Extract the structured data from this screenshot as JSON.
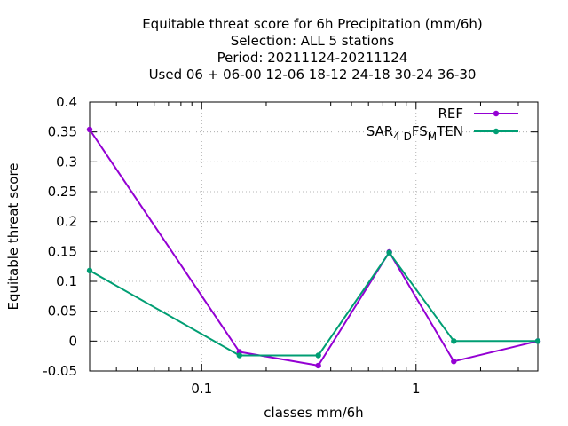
{
  "chart_data": {
    "type": "line",
    "title_lines": [
      "Equitable threat score  for 6h Precipitation (mm/6h)",
      "Selection: ALL      5 stations",
      "Period: 20211124-20211124",
      "Used  06  + 06-00 12-06 18-12 24-18 30-24 36-30"
    ],
    "xlabel": "classes mm/6h",
    "ylabel": "Equitable threat score",
    "xscale": "log",
    "xlim": [
      0.03,
      3.7
    ],
    "ylim": [
      -0.05,
      0.4
    ],
    "grid": true,
    "legend_position": "top-right",
    "x_ticks": [
      {
        "value": 0.1,
        "label": "0.1"
      },
      {
        "value": 1,
        "label": "1"
      }
    ],
    "y_ticks": [
      {
        "value": -0.05,
        "label": "-0.05"
      },
      {
        "value": 0,
        "label": "0"
      },
      {
        "value": 0.05,
        "label": "0.05"
      },
      {
        "value": 0.1,
        "label": "0.1"
      },
      {
        "value": 0.15,
        "label": "0.15"
      },
      {
        "value": 0.2,
        "label": "0.2"
      },
      {
        "value": 0.25,
        "label": "0.25"
      },
      {
        "value": 0.3,
        "label": "0.3"
      },
      {
        "value": 0.35,
        "label": "0.35"
      },
      {
        "value": 0.4,
        "label": "0.4"
      }
    ],
    "x": [
      0.03,
      0.15,
      0.35,
      0.75,
      1.5,
      3.7
    ],
    "series": [
      {
        "name": "REF",
        "legend_parts": [
          {
            "t": "REF",
            "sub": false
          }
        ],
        "color": "#9400d3",
        "values": [
          0.354,
          -0.018,
          -0.041,
          0.149,
          -0.034,
          0.0
        ]
      },
      {
        "name": "SAR4DFSMTEN",
        "legend_parts": [
          {
            "t": "SAR",
            "sub": false
          },
          {
            "t": "4 D",
            "sub": true
          },
          {
            "t": "FS",
            "sub": false
          },
          {
            "t": "M",
            "sub": true
          },
          {
            "t": "TEN",
            "sub": false
          }
        ],
        "color": "#009e73",
        "values": [
          0.118,
          -0.024,
          -0.024,
          0.148,
          0.0,
          0.0
        ]
      }
    ]
  }
}
